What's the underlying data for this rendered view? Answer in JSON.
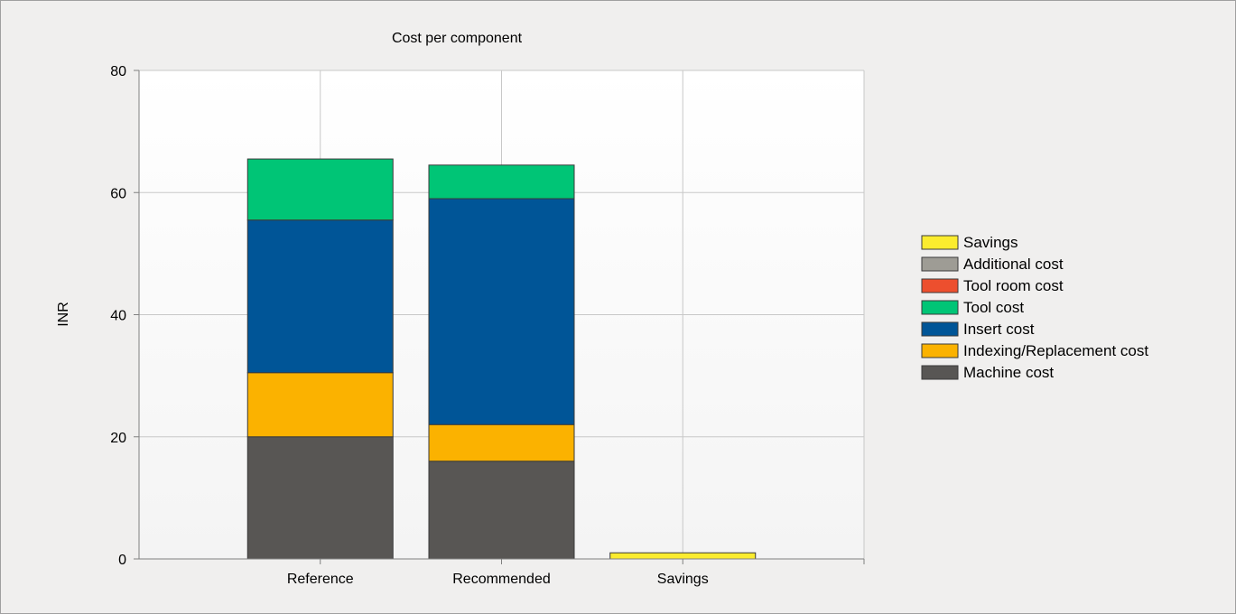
{
  "chart_data": {
    "type": "bar",
    "stacked": true,
    "title": "Cost per component",
    "xlabel": "",
    "ylabel": "INR",
    "ylim": [
      0,
      80
    ],
    "yticks": [
      0,
      20,
      40,
      60,
      80
    ],
    "categories": [
      "Reference",
      "Recommended",
      "Savings"
    ],
    "series": [
      {
        "name": "Machine cost",
        "color": "#585654",
        "values": [
          20,
          16,
          0
        ]
      },
      {
        "name": "Indexing/Replacement cost",
        "color": "#fbb200",
        "values": [
          10.5,
          6,
          0
        ]
      },
      {
        "name": "Insert cost",
        "color": "#005597",
        "values": [
          25,
          37,
          0
        ]
      },
      {
        "name": "Tool cost",
        "color": "#00c576",
        "values": [
          10,
          5.5,
          0
        ]
      },
      {
        "name": "Tool room cost",
        "color": "#ed4f2e",
        "values": [
          0,
          0,
          0
        ]
      },
      {
        "name": "Additional cost",
        "color": "#9e9c95",
        "values": [
          0,
          0,
          0
        ]
      },
      {
        "name": "Savings",
        "color": "#fbec2e",
        "values": [
          0,
          0,
          1
        ]
      }
    ],
    "legend_order": [
      "Savings",
      "Additional cost",
      "Tool room cost",
      "Tool cost",
      "Insert cost",
      "Indexing/Replacement cost",
      "Machine cost"
    ],
    "legend_position": "right",
    "grid": true
  }
}
